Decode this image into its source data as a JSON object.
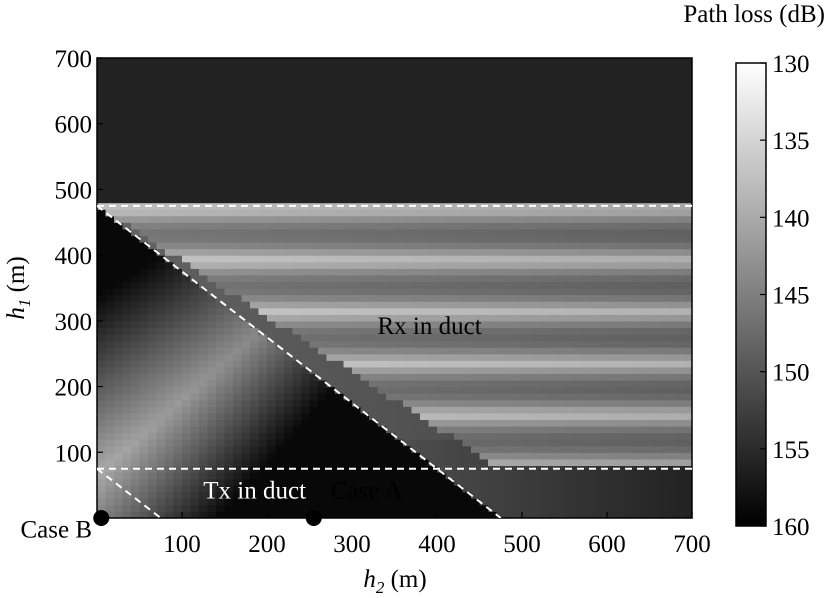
{
  "chart_data": {
    "type": "heatmap",
    "colormap": "gray",
    "xlabel": {
      "var": "h",
      "sub": "2",
      "unit": " (m)"
    },
    "ylabel": {
      "var": "h",
      "sub": "1",
      "unit": " (m)"
    },
    "xlim": [
      0,
      700
    ],
    "ylim": [
      0,
      700
    ],
    "x_ticks": [
      100,
      200,
      300,
      400,
      500,
      600,
      700
    ],
    "y_ticks": [
      100,
      200,
      300,
      400,
      500,
      600,
      700
    ],
    "colorbar": {
      "label": "Path loss (dB)",
      "range": [
        130,
        160
      ],
      "ticks": [
        130,
        135,
        140,
        145,
        150,
        155,
        160
      ],
      "low_value_color": "#ffffff",
      "high_value_color": "#000000"
    },
    "duct_top_left": 475,
    "duct_top_right": 75,
    "reference_lines": [
      {
        "kind": "horizontal",
        "y": 475,
        "style": "dashed",
        "color": "#ffffff"
      },
      {
        "kind": "horizontal",
        "y": 75,
        "style": "dashed",
        "color": "#ffffff"
      },
      {
        "kind": "segment",
        "from": [
          0,
          475
        ],
        "to": [
          475,
          0
        ],
        "style": "dashed",
        "color": "#ffffff"
      },
      {
        "kind": "segment",
        "from": [
          0,
          75
        ],
        "to": [
          75,
          0
        ],
        "style": "dashed",
        "color": "#ffffff"
      }
    ],
    "annotations": [
      {
        "text": "Rx in duct",
        "x": 330,
        "y": 280,
        "color": "#000000"
      },
      {
        "text": "Tx in duct",
        "x": 125,
        "y": 30,
        "color": "#ffffff"
      },
      {
        "text": "Case A",
        "x": 275,
        "y": 30,
        "color": "#000000"
      },
      {
        "text": "Case B",
        "x": -90,
        "y": -30,
        "color": "#000000"
      }
    ],
    "markers": [
      {
        "name": "Case A",
        "x": 255,
        "y": 0,
        "color": "#000000"
      },
      {
        "name": "Case B",
        "x": 5,
        "y": 0,
        "color": "#000000"
      }
    ]
  }
}
